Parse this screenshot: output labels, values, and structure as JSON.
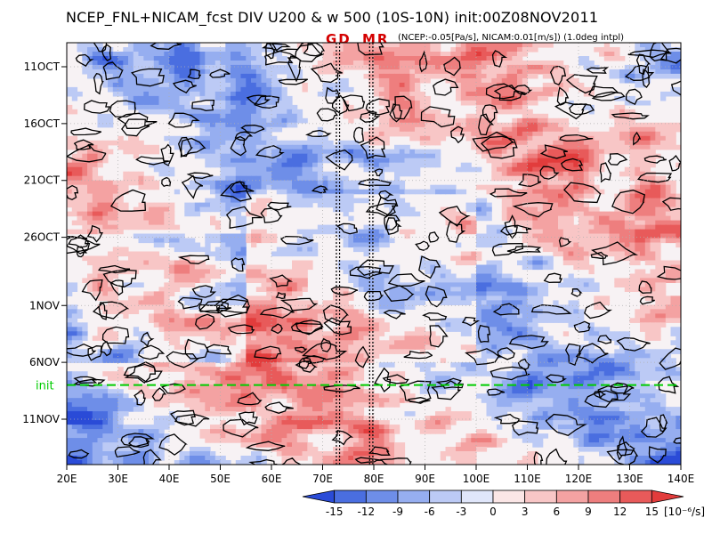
{
  "chart_data": {
    "type": "heatmap",
    "title": "NCEP_FNL+NICAM_fcst DIV U200 & w 500 (10S-10N) init:00Z08NOV2011",
    "subtitle": "(NCEP:-0.05[Pa/s], NICAM:0.01[m/s]) (1.0deg intpl)",
    "x_axis": {
      "quantity": "longitude",
      "range": [
        "20E",
        "140E"
      ],
      "tick_labels": [
        "20E",
        "30E",
        "40E",
        "50E",
        "60E",
        "70E",
        "80E",
        "90E",
        "100E",
        "110E",
        "120E",
        "130E",
        "140E"
      ],
      "tick_values": [
        20,
        30,
        40,
        50,
        60,
        70,
        80,
        90,
        100,
        110,
        120,
        130,
        140
      ]
    },
    "y_axis": {
      "quantity": "time",
      "direction": "downward",
      "tick_labels": [
        "11OCT",
        "16OCT",
        "21OCT",
        "26OCT",
        "1NOV",
        "6NOV",
        "11NOV"
      ],
      "tick_dates": [
        "2011-10-11",
        "2011-10-16",
        "2011-10-21",
        "2011-10-26",
        "2011-11-01",
        "2011-11-06",
        "2011-11-11"
      ]
    },
    "markers": [
      {
        "label": "GD",
        "longitude": 73
      },
      {
        "label": "MR",
        "longitude": 79.5
      }
    ],
    "init_line": {
      "label": "init",
      "date": "2011-11-08",
      "color": "#00cc00"
    },
    "colorbar": {
      "levels": [
        -15,
        -12,
        -9,
        -6,
        -3,
        0,
        3,
        6,
        9,
        12,
        15
      ],
      "tick_labels": [
        "-15",
        "-12",
        "-9",
        "-6",
        "-3",
        "0",
        "3",
        "6",
        "9",
        "12",
        "15"
      ],
      "unit": "[10⁻⁶/s]",
      "colors": [
        "#2a4bd7",
        "#4a6ee0",
        "#6e8ee8",
        "#96aef0",
        "#bccaf5",
        "#e0e6fa",
        "#fbe6e6",
        "#f8c6c6",
        "#f4a2a2",
        "#ee7e7e",
        "#e85a5a",
        "#e23c3c"
      ]
    },
    "contour_color": "#000000",
    "grid": "dotted"
  }
}
